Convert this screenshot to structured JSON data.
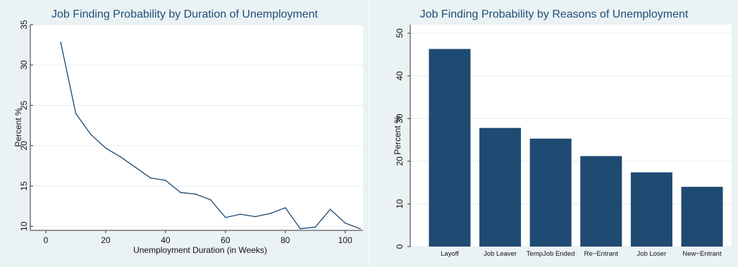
{
  "colors": {
    "panel_bg": "#eaf2f3",
    "plot_bg": "#ffffff",
    "line": "#1a476f",
    "bar": "#1f4a72",
    "grid": "#e6eef0",
    "title": "#1f4e79"
  },
  "chart_data": [
    {
      "type": "line",
      "title": "Job Finding Probability by Duration of Unemployment",
      "xlabel": "Unemployment Duration (in Weeks)",
      "ylabel": "Percent %",
      "xlim": [
        0,
        105
      ],
      "ylim": [
        9.5,
        35
      ],
      "xticks": [
        0,
        20,
        40,
        60,
        80,
        100
      ],
      "yticks": [
        10,
        15,
        20,
        25,
        30,
        35
      ],
      "grid": true,
      "series": [
        {
          "x": [
            5,
            10,
            15,
            20,
            25,
            30,
            35,
            40,
            45,
            50,
            55,
            60,
            65,
            70,
            75,
            80,
            85,
            90,
            95,
            100,
            105
          ],
          "y": [
            32.8,
            24.0,
            21.4,
            19.7,
            18.6,
            17.3,
            16.0,
            15.7,
            14.2,
            14.0,
            13.3,
            11.1,
            11.5,
            11.2,
            11.6,
            12.3,
            9.7,
            9.9,
            12.1,
            10.4,
            9.7
          ]
        }
      ]
    },
    {
      "type": "bar",
      "title": "Job Finding Probability by Reasons of Unemployment",
      "xlabel": "",
      "ylabel": "Percent %",
      "ylim": [
        0,
        52
      ],
      "yticks": [
        0,
        10,
        20,
        30,
        40,
        50
      ],
      "grid": true,
      "categories": [
        "Layoff",
        "Job Leaver",
        "TempJob Ended",
        "Re−Entrant",
        "Job Loser",
        "New−Entrant"
      ],
      "values": [
        46.3,
        27.8,
        25.3,
        21.2,
        17.4,
        14.0
      ]
    }
  ]
}
